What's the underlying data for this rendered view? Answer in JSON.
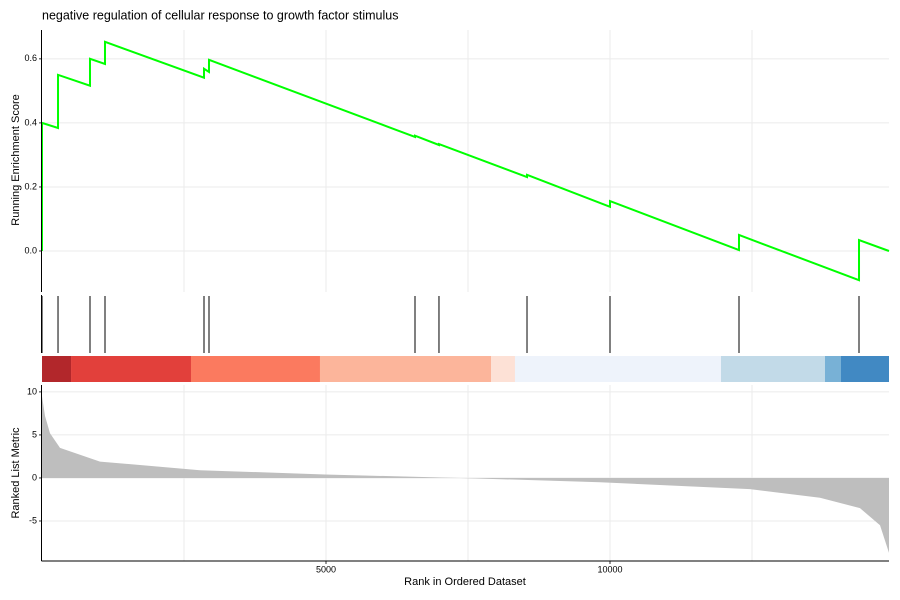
{
  "chart_data": [
    {
      "type": "line",
      "title": "negative regulation of cellular response to growth factor stimulus",
      "ylabel": "Running Enrichment Score",
      "x": [
        0,
        0,
        282,
        282,
        845,
        845,
        1109,
        1109,
        2852,
        2852,
        2940,
        2940,
        6567,
        6567,
        6989,
        6989,
        8539,
        8539,
        10000,
        10000,
        12271,
        12271,
        14384,
        14384,
        14912
      ],
      "values": [
        0,
        0.4,
        0.384,
        0.55,
        0.516,
        0.6,
        0.584,
        0.653,
        0.541,
        0.569,
        0.559,
        0.597,
        0.356,
        0.36,
        0.331,
        0.334,
        0.231,
        0.238,
        0.138,
        0.156,
        0.003,
        0.05,
        -0.091,
        0.034,
        0
      ],
      "color": "#00ff00",
      "xlim": [
        0,
        14912
      ],
      "ylim": [
        -0.128,
        0.69
      ],
      "yticks": [
        {
          "value": 0,
          "label": "0.0"
        },
        0.2,
        0.4,
        0.6
      ],
      "xgrid": [
        2500,
        5000,
        7500,
        10000,
        12500
      ]
    },
    {
      "type": "rug",
      "x": [
        0,
        282,
        845,
        1109,
        2852,
        2940,
        6567,
        6989,
        8539,
        10000,
        12271,
        14384
      ],
      "color": "#000000",
      "bands": [
        {
          "start": 0,
          "end": 511,
          "color": "#b2272b"
        },
        {
          "start": 511,
          "end": 2623,
          "color": "#e2403b"
        },
        {
          "start": 2623,
          "end": 4894,
          "color": "#fb7a5f"
        },
        {
          "start": 4894,
          "end": 7905,
          "color": "#fcb59b"
        },
        {
          "start": 7905,
          "end": 8327,
          "color": "#fde1d6"
        },
        {
          "start": 8327,
          "end": 11954,
          "color": "#eef3fb"
        },
        {
          "start": 11954,
          "end": 13785,
          "color": "#c2dae8"
        },
        {
          "start": 13785,
          "end": 14067,
          "color": "#78b1d6"
        },
        {
          "start": 14067,
          "end": 14912,
          "color": "#4189c3"
        }
      ],
      "xlim": [
        0,
        14912
      ]
    },
    {
      "type": "area",
      "ylabel": "Ranked List Metric",
      "xlabel": "Rank in Ordered Dataset",
      "x": [
        0,
        53,
        141,
        317,
        1021,
        2782,
        4982,
        7359,
        9824,
        12465,
        13697,
        14401,
        14754,
        14912
      ],
      "values": [
        9.5,
        7.2,
        5.2,
        3.5,
        1.9,
        0.9,
        0.4,
        0,
        -0.5,
        -1.3,
        -2.3,
        -3.5,
        -5.5,
        -8.7
      ],
      "color": "#bebebe",
      "xlim": [
        0,
        14912
      ],
      "ylim": [
        -9.65,
        10.8
      ],
      "xticks": [
        5000,
        10000
      ],
      "yticks": [
        -5,
        0,
        5,
        10
      ],
      "xgrid": [
        2500,
        5000,
        7500,
        10000,
        12500
      ]
    }
  ]
}
